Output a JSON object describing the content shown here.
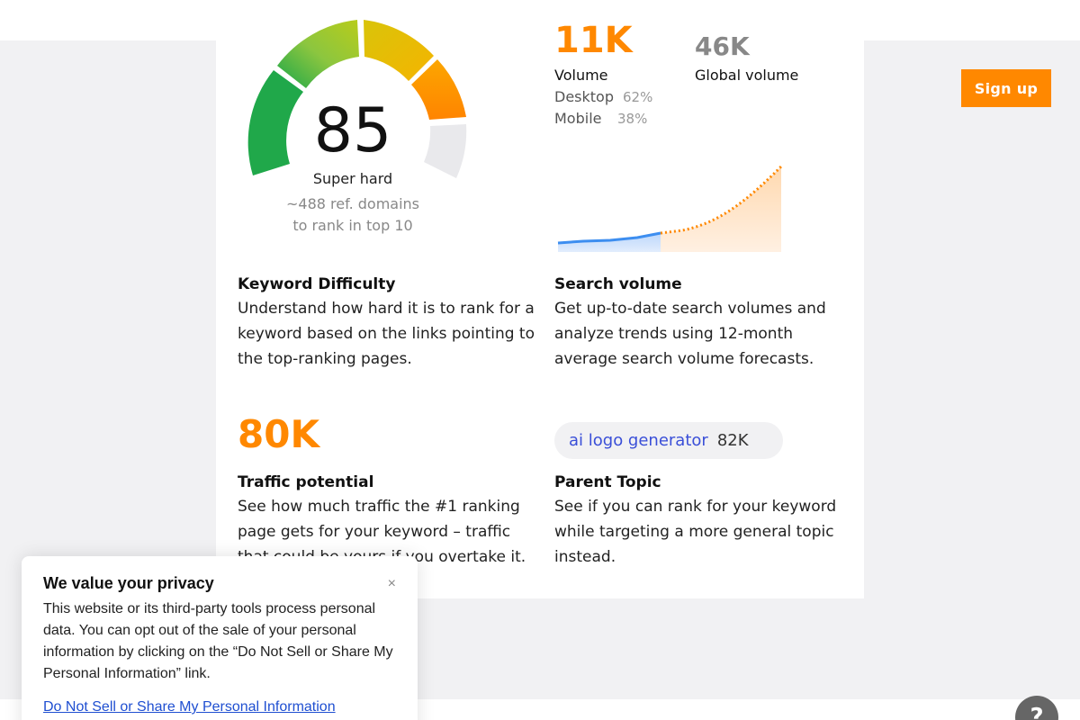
{
  "header": {
    "signup_label": "Sign up"
  },
  "keyword_difficulty": {
    "score": "85",
    "level": "Super hard",
    "ref_domains_line1": "~488 ref. domains",
    "ref_domains_line2": "to rank in top 10",
    "title": "Keyword Difficulty",
    "description": "Understand how hard it is to rank for a keyword based on the links pointing to the top-ranking pages."
  },
  "search_volume": {
    "volume": "11K",
    "volume_label": "Volume",
    "global_volume": "46K",
    "global_label": "Global volume",
    "desktop_label": "Desktop",
    "desktop_pct": "62%",
    "mobile_label": "Mobile",
    "mobile_pct": "38%",
    "title": "Search volume",
    "description": "Get up-to-date search volumes and analyze trends using 12-month average search volume forecasts."
  },
  "traffic_potential": {
    "value": "80K",
    "title": "Traffic potential",
    "description": "See how much traffic the #1 ranking page gets for your keyword – traffic that could be yours if you overtake it."
  },
  "parent_topic": {
    "keyword": "ai logo generator",
    "volume": "82K",
    "title": "Parent Topic",
    "description": "See if you can rank for your keyword while targeting a more general topic instead."
  },
  "privacy_banner": {
    "title": "We value your privacy",
    "body": "This website or its third-party tools process personal data. You can opt out of the sale of your personal information by clicking on the “Do Not Sell or Share My Personal Information” link.",
    "link": "Do Not Sell or Share My Personal Information",
    "close_icon": "×"
  },
  "help": {
    "icon": "?"
  },
  "colors": {
    "accent": "#ff8800",
    "link": "#1f4fd1",
    "keyword": "#3a4fd8"
  },
  "icons": [
    "close-icon",
    "help-icon"
  ]
}
